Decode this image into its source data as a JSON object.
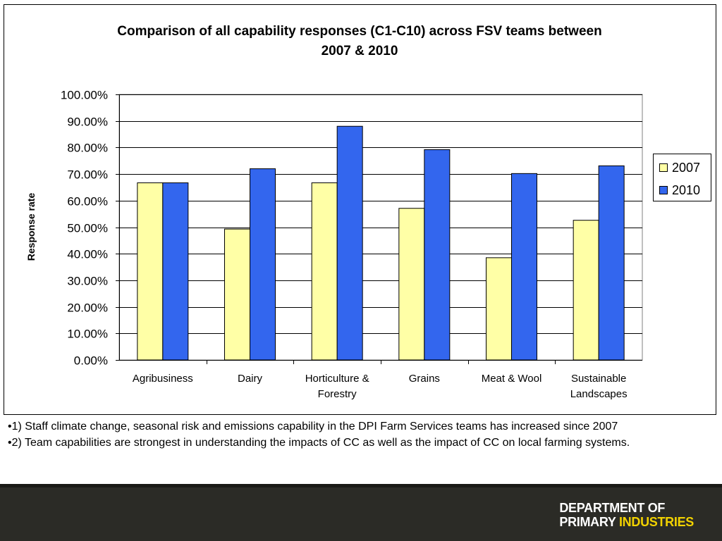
{
  "chart_data": {
    "type": "bar",
    "title_lines": [
      "Comparison of all capability responses (C1-C10) across FSV teams between",
      "2007 & 2010"
    ],
    "xlabel": "",
    "ylabel": "Response rate",
    "categories": [
      [
        "Agribusiness"
      ],
      [
        "Dairy"
      ],
      [
        "Horticulture &",
        "Forestry"
      ],
      [
        "Grains"
      ],
      [
        "Meat & Wool"
      ],
      [
        "Sustainable",
        "Landscapes"
      ]
    ],
    "series": [
      {
        "name": "2007",
        "color": "#ffffa6",
        "values": [
          66.7,
          49.3,
          66.7,
          57.1,
          38.5,
          52.6
        ]
      },
      {
        "name": "2010",
        "color": "#3366ee",
        "values": [
          66.7,
          72.0,
          88.0,
          79.2,
          70.2,
          73.1
        ]
      }
    ],
    "ylim": [
      0,
      100
    ],
    "yticks": [
      "0.00%",
      "10.00%",
      "20.00%",
      "30.00%",
      "40.00%",
      "50.00%",
      "60.00%",
      "70.00%",
      "80.00%",
      "90.00%",
      "100.00%"
    ],
    "grid": true,
    "legend_position": "right"
  },
  "notes": [
    "•1) Staff climate change, seasonal risk and emissions capability in the DPI Farm Services teams has increased since 2007",
    "•2) Team capabilities are strongest in understanding the impacts of CC as well as the impact of CC on local farming systems."
  ],
  "logo": {
    "line1": "DEPARTMENT OF",
    "line2_a": "PRIMARY",
    "line2_b": "INDUSTRIES"
  }
}
